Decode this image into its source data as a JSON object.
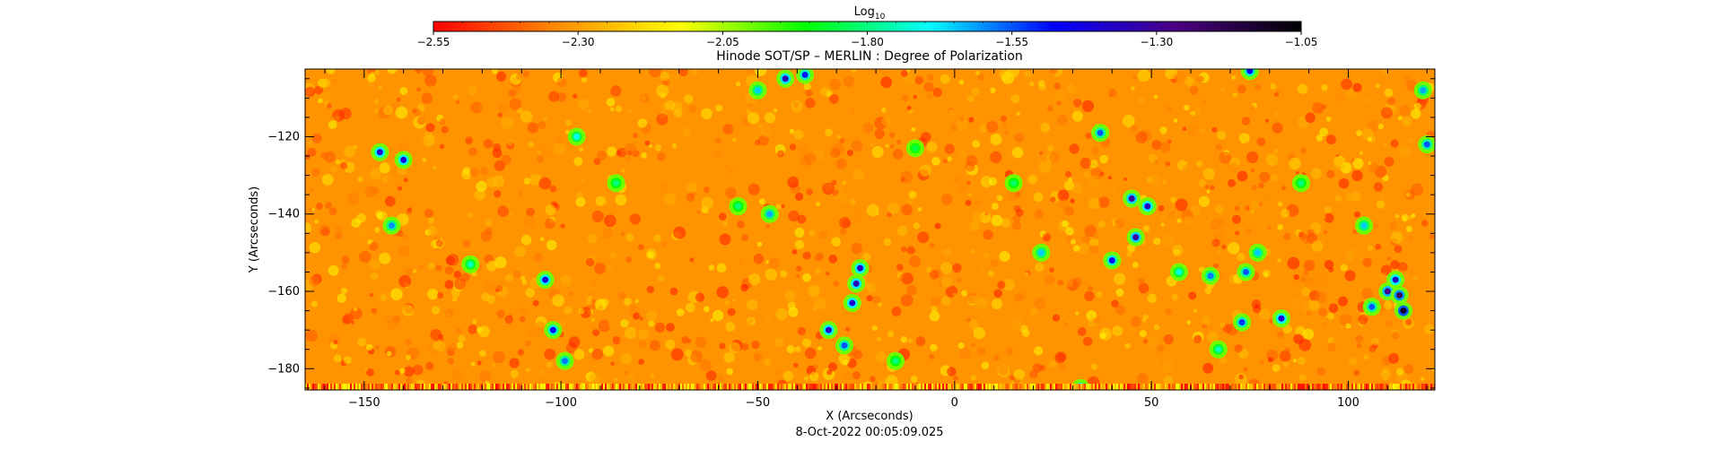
{
  "chart_data": {
    "type": "heatmap",
    "title": "Hinode SOT/SP – MERLIN : Degree of Polarization",
    "xlabel": "X (Arcseconds)",
    "ylabel": "Y (Arcseconds)",
    "footer": "8-Oct-2022 00:05:09.025",
    "xlim": [
      -165,
      122
    ],
    "ylim": [
      -185.5,
      -102.5
    ],
    "xticks": [
      -150,
      -100,
      -50,
      0,
      50,
      100
    ],
    "xtick_labels": [
      "−150",
      "−100",
      "−50",
      "0",
      "50",
      "100"
    ],
    "yticks": [
      -120,
      -140,
      -160,
      -180
    ],
    "ytick_labels": [
      "−120",
      "−140",
      "−160",
      "−180"
    ],
    "colorbar": {
      "label_base": "Log",
      "label_sub": "10",
      "range": [
        -2.55,
        -1.05
      ],
      "ticks": [
        -2.55,
        -2.3,
        -2.05,
        -1.8,
        -1.55,
        -1.3,
        -1.05
      ],
      "tick_labels": [
        "−2.55",
        "−2.30",
        "−2.05",
        "−1.80",
        "−1.55",
        "−1.30",
        "−1.05"
      ],
      "colors": [
        "#ff0000",
        "#ff8c00",
        "#ffff00",
        "#00ff00",
        "#00ffff",
        "#0000ff",
        "#4b0082",
        "#000000"
      ]
    },
    "background_value": -2.32,
    "features": [
      {
        "x": -146,
        "y": -124,
        "v": -1.4
      },
      {
        "x": -140,
        "y": -126,
        "v": -1.42
      },
      {
        "x": -143,
        "y": -143,
        "v": -1.6
      },
      {
        "x": -123,
        "y": -153,
        "v": -1.75
      },
      {
        "x": -104,
        "y": -157,
        "v": -1.42
      },
      {
        "x": -102,
        "y": -170,
        "v": -1.48
      },
      {
        "x": -99,
        "y": -178,
        "v": -1.58
      },
      {
        "x": -96,
        "y": -120,
        "v": -1.7
      },
      {
        "x": -55,
        "y": -138,
        "v": -1.8
      },
      {
        "x": -47,
        "y": -140,
        "v": -1.62
      },
      {
        "x": -43,
        "y": -105,
        "v": -1.35
      },
      {
        "x": -38,
        "y": -104,
        "v": -1.5
      },
      {
        "x": -50,
        "y": -108,
        "v": -1.65
      },
      {
        "x": -24,
        "y": -154,
        "v": -1.38
      },
      {
        "x": -25,
        "y": -158,
        "v": -1.36
      },
      {
        "x": -26,
        "y": -163,
        "v": -1.4
      },
      {
        "x": -32,
        "y": -170,
        "v": -1.38
      },
      {
        "x": -28,
        "y": -174,
        "v": -1.55
      },
      {
        "x": -10,
        "y": -123,
        "v": -1.85
      },
      {
        "x": 37,
        "y": -119,
        "v": -1.55
      },
      {
        "x": 22,
        "y": -150,
        "v": -1.65
      },
      {
        "x": 45,
        "y": -136,
        "v": -1.32
      },
      {
        "x": 49,
        "y": -138,
        "v": -1.38
      },
      {
        "x": 46,
        "y": -146,
        "v": -1.32
      },
      {
        "x": 40,
        "y": -152,
        "v": -1.48
      },
      {
        "x": 57,
        "y": -155,
        "v": -1.72
      },
      {
        "x": 65,
        "y": -156,
        "v": -1.58
      },
      {
        "x": 74,
        "y": -155,
        "v": -1.55
      },
      {
        "x": 77,
        "y": -150,
        "v": -1.65
      },
      {
        "x": 67,
        "y": -175,
        "v": -1.75
      },
      {
        "x": 73,
        "y": -168,
        "v": -1.52
      },
      {
        "x": 83,
        "y": -167,
        "v": -1.4
      },
      {
        "x": 75,
        "y": -103,
        "v": -1.48
      },
      {
        "x": 104,
        "y": -143,
        "v": -1.65
      },
      {
        "x": 106,
        "y": -164,
        "v": -1.55
      },
      {
        "x": 110,
        "y": -160,
        "v": -1.28
      },
      {
        "x": 113,
        "y": -161,
        "v": -1.22
      },
      {
        "x": 114,
        "y": -165,
        "v": -1.12
      },
      {
        "x": 112,
        "y": -157,
        "v": -1.38
      },
      {
        "x": 120,
        "y": -122,
        "v": -1.55
      },
      {
        "x": 119,
        "y": -108,
        "v": -1.62
      },
      {
        "x": 32,
        "y": -185,
        "v": -1.4
      },
      {
        "x": -86,
        "y": -132,
        "v": -1.8
      },
      {
        "x": -15,
        "y": -178,
        "v": -1.8
      },
      {
        "x": 15,
        "y": -132,
        "v": -1.82
      },
      {
        "x": 88,
        "y": -132,
        "v": -1.8
      }
    ]
  }
}
